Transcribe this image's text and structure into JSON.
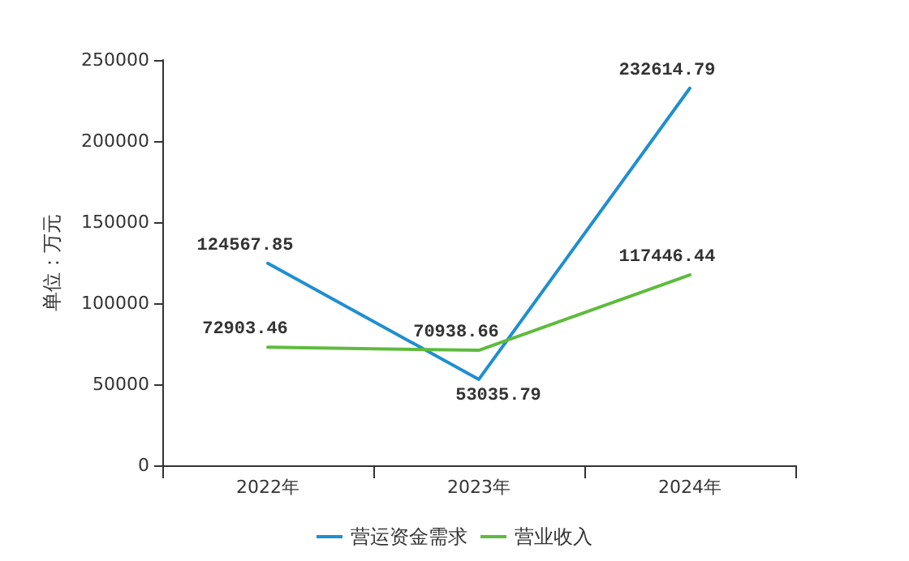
{
  "chart_data": {
    "type": "line",
    "ylabel": "单位：万元",
    "categories": [
      "2022年",
      "2023年",
      "2024年"
    ],
    "series": [
      {
        "name": "营运资金需求",
        "color": "#1f8fcf",
        "values": [
          124567.85,
          53035.79,
          232614.79
        ]
      },
      {
        "name": "营业收入",
        "color": "#5fbb3e",
        "values": [
          72903.46,
          70938.66,
          117446.44
        ]
      }
    ],
    "ylim": [
      0,
      250000
    ],
    "yticks": [
      0,
      50000,
      100000,
      150000,
      200000,
      250000
    ],
    "grid": false,
    "legend": "bottom",
    "marker": "none",
    "line_style": "solid",
    "data_labels": true
  }
}
